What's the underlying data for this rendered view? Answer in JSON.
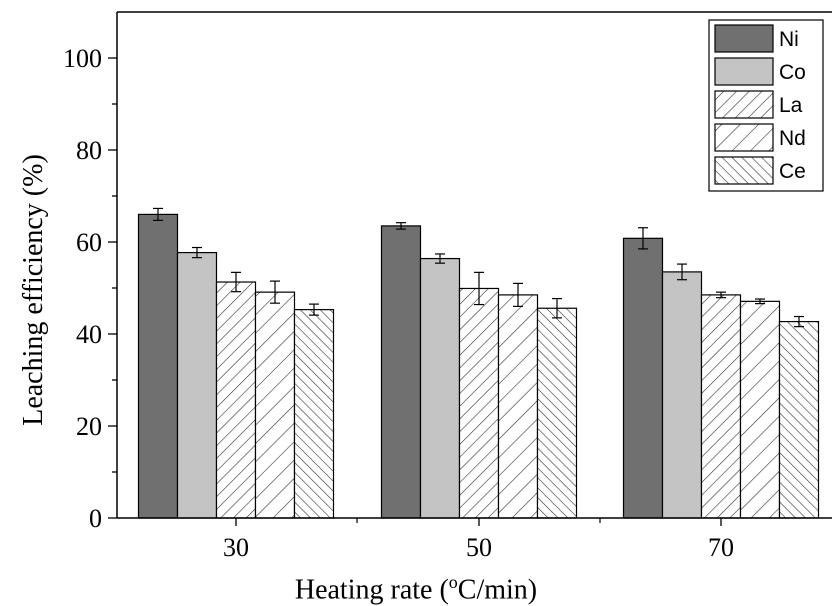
{
  "chart_data": {
    "type": "bar",
    "categories": [
      "30",
      "50",
      "70"
    ],
    "series": [
      {
        "name": "Ni",
        "values": [
          66.0,
          63.5,
          60.8
        ],
        "errors": [
          1.3,
          0.7,
          2.3
        ],
        "fill": "#707070",
        "pattern": "solid"
      },
      {
        "name": "Co",
        "values": [
          57.7,
          56.4,
          53.5
        ],
        "errors": [
          1.1,
          1.0,
          1.7
        ],
        "fill": "#c4c4c4",
        "pattern": "solid"
      },
      {
        "name": "La",
        "values": [
          51.3,
          49.9,
          48.5
        ],
        "errors": [
          2.1,
          3.5,
          0.6
        ],
        "fill": "#ffffff",
        "pattern": "diag-right"
      },
      {
        "name": "Nd",
        "values": [
          49.1,
          48.5,
          47.1
        ],
        "errors": [
          2.4,
          2.5,
          0.5
        ],
        "fill": "#ffffff",
        "pattern": "diag-right-wide"
      },
      {
        "name": "Ce",
        "values": [
          45.3,
          45.6,
          42.7
        ],
        "errors": [
          1.2,
          2.1,
          1.1
        ],
        "fill": "#ffffff",
        "pattern": "diag-left"
      }
    ],
    "ylabel": "Leaching efficiency (%)",
    "xlabel_prefix": "Heating rate (",
    "xlabel_sup": "o",
    "xlabel_suffix": "C/min)",
    "ylim": [
      0,
      110
    ],
    "yticks": [
      "0",
      "20",
      "40",
      "60",
      "80",
      "100"
    ],
    "grid": false,
    "legend_position": "top-right"
  }
}
